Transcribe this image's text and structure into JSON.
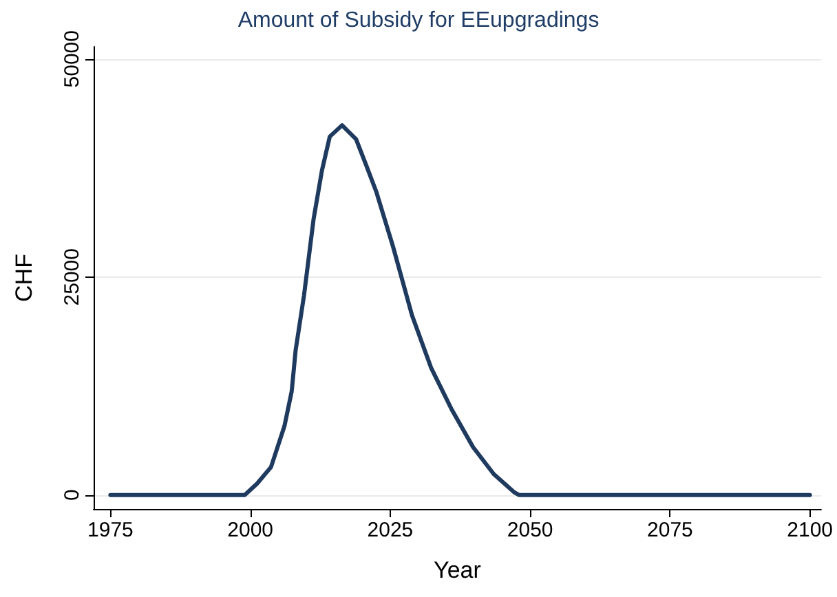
{
  "chart_data": {
    "type": "line",
    "title": "Amount of Subsidy for EEupgradings",
    "xlabel": "Year",
    "ylabel": "CHF",
    "x": [
      1975,
      1985,
      1995,
      1999,
      2001.2,
      2003.7,
      2006.1,
      2007.4,
      2008.1,
      2009.6,
      2011.3,
      2012.8,
      2014.2,
      2016.4,
      2018.9,
      2020.6,
      2022.5,
      2025.5,
      2028.9,
      2032.3,
      2036,
      2039.8,
      2043.5,
      2047.2,
      2048,
      2060,
      2080,
      2100
    ],
    "series": [
      {
        "color": "#1f3a5f",
        "values": [
          0,
          0,
          0,
          0,
          1300,
          3200,
          7900,
          11900,
          16600,
          22900,
          31600,
          37200,
          41100,
          42400,
          40800,
          38000,
          34800,
          28500,
          20600,
          14600,
          9800,
          5500,
          2400,
          300,
          0,
          0,
          0,
          0
        ]
      }
    ],
    "xlim": [
      1972,
      2102
    ],
    "xticks": [
      1975,
      2000,
      2025,
      2050,
      2075,
      2100
    ],
    "ylim": [
      -1600,
      51400
    ],
    "yticks": [
      0,
      25000,
      50000
    ],
    "grid": "y",
    "marker": "none",
    "line_style": "solid"
  }
}
